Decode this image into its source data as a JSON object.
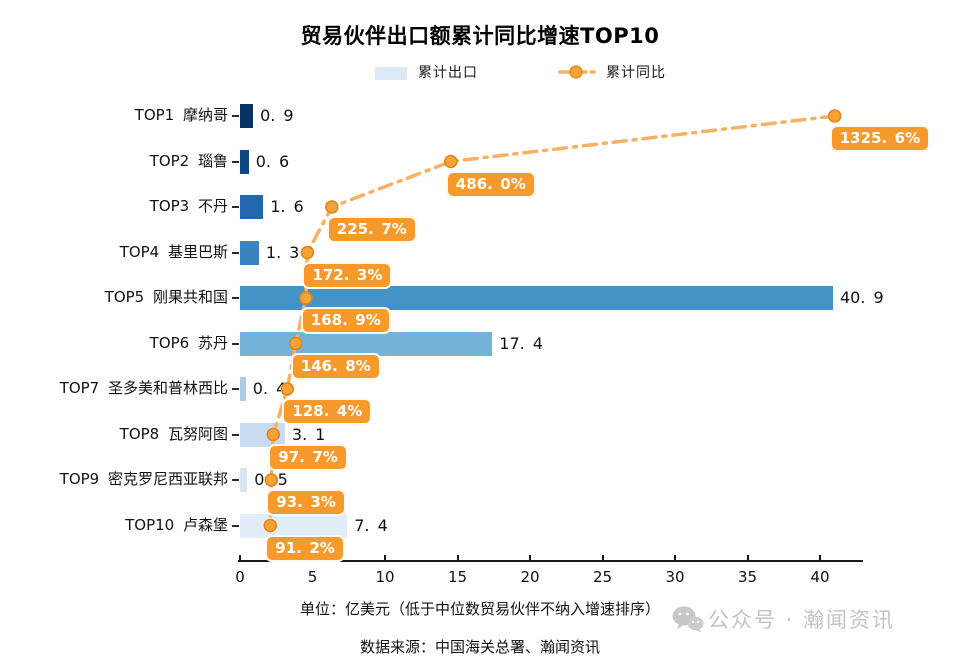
{
  "title": "贸易伙伴出口额累计同比增速TOP10",
  "legend": {
    "bar_label": "累计出口",
    "bar_swatch_color": "#dce9f6",
    "line_label": "累计同比",
    "line_color": "#f8b163",
    "marker_color": "#f6a335",
    "marker_edge_color": "#e2821a"
  },
  "footer": {
    "unit_note": "单位：亿美元（低于中位数贸易伙伴不纳入增速排序）",
    "source_note": "数据来源：中国海关总署、瀚闻资讯"
  },
  "watermark": {
    "icon": "wechat-logo-icon",
    "text": "公众号 · 瀚闻资讯",
    "color": "#c3c3c3"
  },
  "chart_data": {
    "type": "bar",
    "subtype": "horizontal-bar-with-line-overlay",
    "title": "贸易伙伴出口额累计同比增速TOP10",
    "orientation": "horizontal",
    "categories": [
      "TOP1 摩纳哥",
      "TOP2 瑙鲁",
      "TOP3 不丹",
      "TOP4 基里巴斯",
      "TOP5 刚果共和国",
      "TOP6 苏丹",
      "TOP7 圣多美和普林西比",
      "TOP8 瓦努阿图",
      "TOP9 密克罗尼西亚联邦",
      "TOP10 卢森堡"
    ],
    "series": [
      {
        "name": "累计出口",
        "type": "bar",
        "unit": "亿美元",
        "values": [
          0.9,
          0.6,
          1.6,
          1.3,
          40.9,
          17.4,
          0.4,
          3.1,
          0.5,
          7.4
        ],
        "value_labels": [
          "0.9",
          "0.6",
          "1.6",
          "1.3",
          "40.9",
          "17.4",
          "0.4",
          "3.1",
          "0.5",
          "7.4"
        ],
        "bar_colors": [
          "#0a3365",
          "#0d4684",
          "#2267ad",
          "#3784c0",
          "#4593c6",
          "#74b2d8",
          "#a8cde4",
          "#c8dcf0",
          "#d8e6f4",
          "#e3edf8"
        ]
      },
      {
        "name": "累计同比",
        "type": "line",
        "unit": "%",
        "values": [
          1325.6,
          486.0,
          225.7,
          172.3,
          168.9,
          146.8,
          128.4,
          97.7,
          93.3,
          91.2
        ],
        "value_labels": [
          "1325.6%",
          "486.0%",
          "225.7%",
          "172.3%",
          "168.9%",
          "146.8%",
          "128.4%",
          "97.7%",
          "93.3%",
          "91.2%"
        ],
        "line_style": "dash-dot",
        "line_color": "#f8b163",
        "marker_color": "#f6a335",
        "marker_edge_color": "#e2821a",
        "label_bg": "#f8992b",
        "label_text_color": "#ffffff"
      }
    ],
    "x_axis": {
      "ticks": [
        0,
        5,
        10,
        15,
        20,
        25,
        30,
        35,
        40
      ],
      "range": [
        0,
        43
      ],
      "label": ""
    },
    "grid": false,
    "legend_position": "top",
    "notes": [
      "单位：亿美元（低于中位数贸易伙伴不纳入增速排序）",
      "数据来源：中国海关总署、瀚闻资讯"
    ]
  }
}
